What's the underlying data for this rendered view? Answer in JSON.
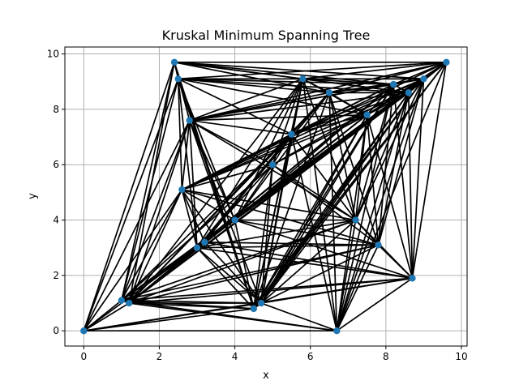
{
  "chart_data": {
    "type": "scatter",
    "title": "Kruskal Minimum Spanning Tree",
    "xlabel": "x",
    "ylabel": "y",
    "xlim": [
      -0.5,
      10.15
    ],
    "ylim": [
      -0.55,
      10.25
    ],
    "xticks": [
      0,
      2,
      4,
      6,
      8,
      10
    ],
    "yticks": [
      0,
      2,
      4,
      6,
      8,
      10
    ],
    "xtick_labels": [
      "0",
      "2",
      "4",
      "6",
      "8",
      "10"
    ],
    "ytick_labels": [
      "0",
      "2",
      "4",
      "6",
      "8",
      "10"
    ],
    "grid": true,
    "node_color": "#1f77b4",
    "edge_color": "#000000",
    "nodes": [
      {
        "id": "A",
        "x": 0.0,
        "y": 0.0
      },
      {
        "id": "B",
        "x": 1.0,
        "y": 1.1
      },
      {
        "id": "C",
        "x": 1.2,
        "y": 1.0
      },
      {
        "id": "D",
        "x": 2.4,
        "y": 9.7
      },
      {
        "id": "E",
        "x": 2.5,
        "y": 9.1
      },
      {
        "id": "F",
        "x": 2.6,
        "y": 5.1
      },
      {
        "id": "G",
        "x": 2.8,
        "y": 7.6
      },
      {
        "id": "H",
        "x": 3.0,
        "y": 3.0
      },
      {
        "id": "I",
        "x": 3.2,
        "y": 3.2
      },
      {
        "id": "J",
        "x": 4.0,
        "y": 4.0
      },
      {
        "id": "K",
        "x": 4.5,
        "y": 0.8
      },
      {
        "id": "L",
        "x": 4.7,
        "y": 1.0
      },
      {
        "id": "M",
        "x": 5.0,
        "y": 6.0
      },
      {
        "id": "N",
        "x": 5.5,
        "y": 7.1
      },
      {
        "id": "O",
        "x": 5.8,
        "y": 9.1
      },
      {
        "id": "P",
        "x": 6.5,
        "y": 8.6
      },
      {
        "id": "Q",
        "x": 6.7,
        "y": 0.0
      },
      {
        "id": "R",
        "x": 7.2,
        "y": 4.0
      },
      {
        "id": "S",
        "x": 7.5,
        "y": 7.8
      },
      {
        "id": "T",
        "x": 7.8,
        "y": 3.1
      },
      {
        "id": "U",
        "x": 8.2,
        "y": 8.9
      },
      {
        "id": "V",
        "x": 8.6,
        "y": 8.6
      },
      {
        "id": "W",
        "x": 8.7,
        "y": 1.9
      },
      {
        "id": "X",
        "x": 9.0,
        "y": 9.1
      },
      {
        "id": "Y",
        "x": 9.6,
        "y": 9.7
      }
    ],
    "edges": [
      [
        "A",
        "B"
      ],
      [
        "A",
        "C"
      ],
      [
        "A",
        "D"
      ],
      [
        "A",
        "E"
      ],
      [
        "A",
        "F"
      ],
      [
        "A",
        "G"
      ],
      [
        "A",
        "H"
      ],
      [
        "A",
        "K"
      ],
      [
        "A",
        "L"
      ],
      [
        "A",
        "Q"
      ],
      [
        "A",
        "W"
      ],
      [
        "B",
        "C"
      ],
      [
        "B",
        "D"
      ],
      [
        "B",
        "E"
      ],
      [
        "B",
        "F"
      ],
      [
        "B",
        "G"
      ],
      [
        "B",
        "H"
      ],
      [
        "B",
        "I"
      ],
      [
        "B",
        "J"
      ],
      [
        "B",
        "K"
      ],
      [
        "B",
        "L"
      ],
      [
        "B",
        "M"
      ],
      [
        "B",
        "N"
      ],
      [
        "B",
        "Q"
      ],
      [
        "B",
        "R"
      ],
      [
        "B",
        "T"
      ],
      [
        "B",
        "W"
      ],
      [
        "B",
        "X"
      ],
      [
        "B",
        "Y"
      ],
      [
        "C",
        "D"
      ],
      [
        "C",
        "F"
      ],
      [
        "C",
        "G"
      ],
      [
        "C",
        "H"
      ],
      [
        "C",
        "K"
      ],
      [
        "C",
        "L"
      ],
      [
        "C",
        "N"
      ],
      [
        "C",
        "O"
      ],
      [
        "C",
        "P"
      ],
      [
        "C",
        "Q"
      ],
      [
        "C",
        "R"
      ],
      [
        "C",
        "S"
      ],
      [
        "C",
        "T"
      ],
      [
        "C",
        "U"
      ],
      [
        "C",
        "V"
      ],
      [
        "C",
        "W"
      ],
      [
        "C",
        "X"
      ],
      [
        "C",
        "Y"
      ],
      [
        "D",
        "E"
      ],
      [
        "D",
        "G"
      ],
      [
        "D",
        "K"
      ],
      [
        "D",
        "O"
      ],
      [
        "D",
        "P"
      ],
      [
        "D",
        "U"
      ],
      [
        "D",
        "V"
      ],
      [
        "D",
        "X"
      ],
      [
        "D",
        "Y"
      ],
      [
        "E",
        "F"
      ],
      [
        "E",
        "H"
      ],
      [
        "E",
        "J"
      ],
      [
        "E",
        "K"
      ],
      [
        "E",
        "N"
      ],
      [
        "E",
        "O"
      ],
      [
        "E",
        "P"
      ],
      [
        "E",
        "S"
      ],
      [
        "E",
        "U"
      ],
      [
        "E",
        "V"
      ],
      [
        "E",
        "X"
      ],
      [
        "E",
        "Y"
      ],
      [
        "F",
        "G"
      ],
      [
        "F",
        "H"
      ],
      [
        "F",
        "I"
      ],
      [
        "F",
        "J"
      ],
      [
        "F",
        "L"
      ],
      [
        "F",
        "M"
      ],
      [
        "F",
        "N"
      ],
      [
        "F",
        "S"
      ],
      [
        "F",
        "U"
      ],
      [
        "F",
        "V"
      ],
      [
        "F",
        "X"
      ],
      [
        "F",
        "Y"
      ],
      [
        "F",
        "R"
      ],
      [
        "F",
        "T"
      ],
      [
        "G",
        "H"
      ],
      [
        "G",
        "J"
      ],
      [
        "G",
        "K"
      ],
      [
        "G",
        "L"
      ],
      [
        "G",
        "M"
      ],
      [
        "G",
        "N"
      ],
      [
        "G",
        "O"
      ],
      [
        "G",
        "P"
      ],
      [
        "G",
        "R"
      ],
      [
        "G",
        "S"
      ],
      [
        "G",
        "U"
      ],
      [
        "G",
        "V"
      ],
      [
        "G",
        "X"
      ],
      [
        "G",
        "Y"
      ],
      [
        "H",
        "I"
      ],
      [
        "H",
        "J"
      ],
      [
        "H",
        "K"
      ],
      [
        "H",
        "L"
      ],
      [
        "H",
        "M"
      ],
      [
        "H",
        "N"
      ],
      [
        "H",
        "O"
      ],
      [
        "H",
        "P"
      ],
      [
        "H",
        "R"
      ],
      [
        "H",
        "S"
      ],
      [
        "H",
        "T"
      ],
      [
        "H",
        "U"
      ],
      [
        "H",
        "V"
      ],
      [
        "H",
        "W"
      ],
      [
        "H",
        "X"
      ],
      [
        "H",
        "Y"
      ],
      [
        "I",
        "J"
      ],
      [
        "I",
        "L"
      ],
      [
        "I",
        "N"
      ],
      [
        "I",
        "T"
      ],
      [
        "I",
        "W"
      ],
      [
        "I",
        "X"
      ],
      [
        "J",
        "K"
      ],
      [
        "J",
        "M"
      ],
      [
        "J",
        "O"
      ],
      [
        "J",
        "P"
      ],
      [
        "J",
        "R"
      ],
      [
        "J",
        "S"
      ],
      [
        "J",
        "T"
      ],
      [
        "J",
        "U"
      ],
      [
        "J",
        "W"
      ],
      [
        "J",
        "X"
      ],
      [
        "K",
        "L"
      ],
      [
        "K",
        "M"
      ],
      [
        "K",
        "N"
      ],
      [
        "K",
        "O"
      ],
      [
        "K",
        "P"
      ],
      [
        "K",
        "S"
      ],
      [
        "K",
        "U"
      ],
      [
        "K",
        "V"
      ],
      [
        "K",
        "X"
      ],
      [
        "K",
        "Y"
      ],
      [
        "L",
        "M"
      ],
      [
        "L",
        "N"
      ],
      [
        "L",
        "O"
      ],
      [
        "L",
        "Q"
      ],
      [
        "L",
        "R"
      ],
      [
        "L",
        "S"
      ],
      [
        "L",
        "T"
      ],
      [
        "L",
        "U"
      ],
      [
        "L",
        "V"
      ],
      [
        "L",
        "W"
      ],
      [
        "L",
        "X"
      ],
      [
        "L",
        "Y"
      ],
      [
        "M",
        "N"
      ],
      [
        "M",
        "O"
      ],
      [
        "M",
        "R"
      ],
      [
        "M",
        "S"
      ],
      [
        "M",
        "T"
      ],
      [
        "M",
        "V"
      ],
      [
        "M",
        "X"
      ],
      [
        "N",
        "O"
      ],
      [
        "N",
        "P"
      ],
      [
        "N",
        "Q"
      ],
      [
        "N",
        "R"
      ],
      [
        "N",
        "S"
      ],
      [
        "N",
        "U"
      ],
      [
        "N",
        "V"
      ],
      [
        "N",
        "X"
      ],
      [
        "O",
        "P"
      ],
      [
        "O",
        "Q"
      ],
      [
        "O",
        "R"
      ],
      [
        "O",
        "S"
      ],
      [
        "O",
        "U"
      ],
      [
        "O",
        "V"
      ],
      [
        "O",
        "X"
      ],
      [
        "O",
        "Y"
      ],
      [
        "P",
        "Q"
      ],
      [
        "P",
        "R"
      ],
      [
        "P",
        "S"
      ],
      [
        "P",
        "T"
      ],
      [
        "P",
        "U"
      ],
      [
        "P",
        "V"
      ],
      [
        "P",
        "X"
      ],
      [
        "P",
        "Y"
      ],
      [
        "Q",
        "R"
      ],
      [
        "Q",
        "S"
      ],
      [
        "Q",
        "T"
      ],
      [
        "Q",
        "U"
      ],
      [
        "Q",
        "V"
      ],
      [
        "Q",
        "W"
      ],
      [
        "Q",
        "X"
      ],
      [
        "Q",
        "Y"
      ],
      [
        "R",
        "S"
      ],
      [
        "R",
        "T"
      ],
      [
        "R",
        "U"
      ],
      [
        "R",
        "V"
      ],
      [
        "R",
        "W"
      ],
      [
        "R",
        "X"
      ],
      [
        "S",
        "T"
      ],
      [
        "S",
        "U"
      ],
      [
        "S",
        "V"
      ],
      [
        "S",
        "W"
      ],
      [
        "S",
        "X"
      ],
      [
        "S",
        "Y"
      ],
      [
        "T",
        "U"
      ],
      [
        "T",
        "V"
      ],
      [
        "T",
        "W"
      ],
      [
        "T",
        "X"
      ],
      [
        "U",
        "V"
      ],
      [
        "U",
        "W"
      ],
      [
        "U",
        "X"
      ],
      [
        "U",
        "Y"
      ],
      [
        "V",
        "W"
      ],
      [
        "V",
        "X"
      ],
      [
        "V",
        "Y"
      ],
      [
        "W",
        "X"
      ],
      [
        "W",
        "Y"
      ],
      [
        "X",
        "Y"
      ]
    ]
  }
}
